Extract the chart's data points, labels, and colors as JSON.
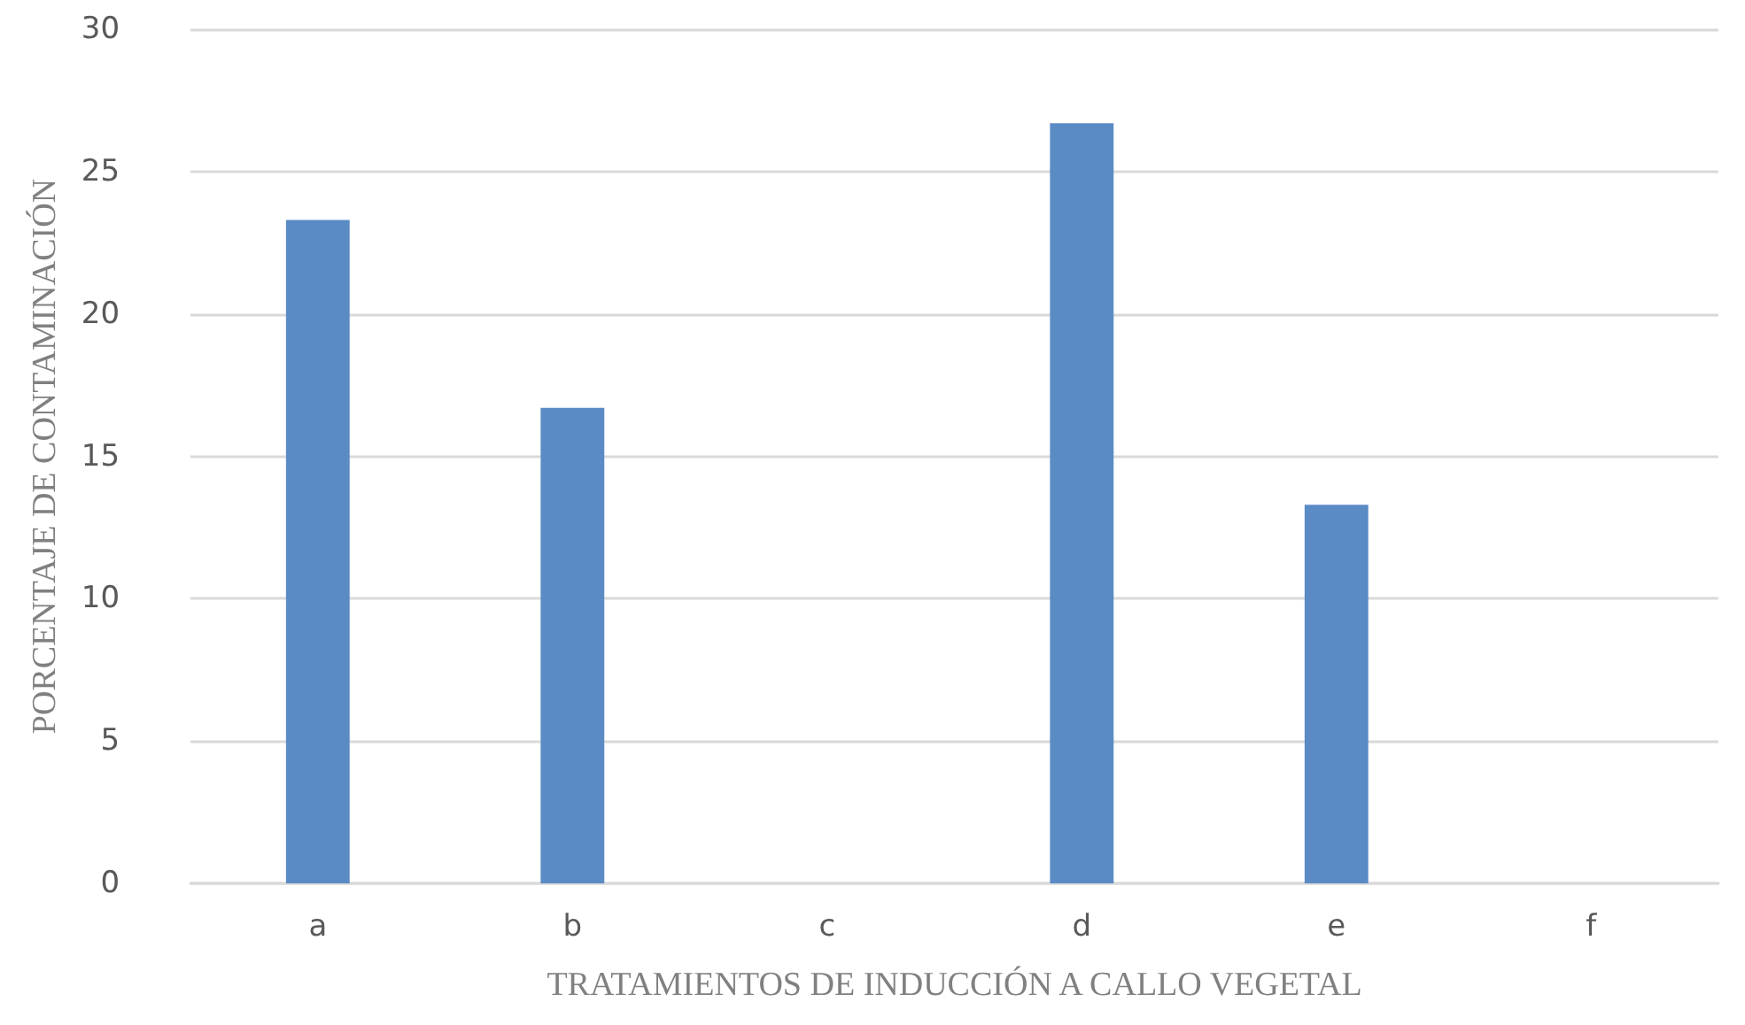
{
  "chart_data": {
    "type": "bar",
    "xlabel": "TRATAMIENTOS DE INDUCCIÓN A CALLO VEGETAL",
    "ylabel": "PORCENTAJE DE CONTAMINACIÓN",
    "categories": [
      "a",
      "b",
      "c",
      "d",
      "e",
      "f"
    ],
    "values": [
      23.3,
      16.7,
      0,
      26.7,
      13.3,
      0
    ],
    "color": "#5b8bc5",
    "ylim": [
      0,
      30
    ],
    "yticks": [
      0,
      5,
      10,
      15,
      20,
      25,
      30
    ],
    "grid": "y"
  }
}
